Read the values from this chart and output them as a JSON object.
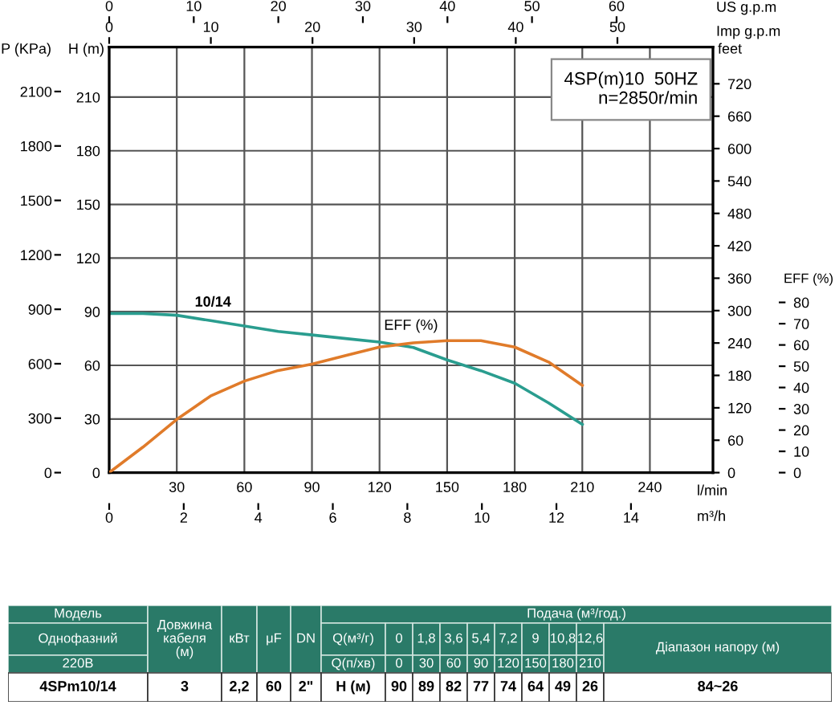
{
  "chart_data": [
    {
      "type": "line",
      "xlabel": "l/min",
      "ylabel": "H (m)",
      "y2label": "EFF (%)",
      "y3label": "feet",
      "x2label": "Imp g.p.m",
      "xlim": [
        0,
        268
      ],
      "xticks": [
        30,
        60,
        90,
        120,
        150,
        180,
        210,
        240
      ],
      "ylim": [
        0,
        238
      ],
      "yticks": [
        0,
        30,
        60,
        90,
        120,
        150,
        180,
        210
      ],
      "y2lim": [
        0,
        80
      ],
      "y2ticks": [
        0,
        10,
        20,
        30,
        40,
        50,
        60,
        70,
        80
      ],
      "y3lim": [
        0,
        788
      ],
      "y3ticks": [
        0,
        60,
        120,
        180,
        240,
        300,
        360,
        420,
        480,
        540,
        600,
        660,
        720
      ],
      "x2lim": [
        0,
        59.4
      ],
      "x2ticks": [
        0,
        10,
        20,
        30,
        40,
        50
      ],
      "grid": true,
      "series": [
        {
          "name": "10/14",
          "color": "#2a9d8f",
          "x": [
            0,
            15,
            30,
            45,
            60,
            75,
            90,
            105,
            120,
            135,
            150,
            165,
            180,
            195,
            210
          ],
          "values": [
            89,
            89,
            88,
            85,
            82,
            79,
            77,
            75,
            73,
            70,
            63,
            57,
            50,
            39,
            27
          ]
        },
        {
          "name": "EFF (%)",
          "color": "#e07b2a",
          "axis": "y2",
          "x": [
            0,
            15,
            30,
            45,
            60,
            75,
            90,
            105,
            120,
            135,
            150,
            165,
            180,
            195,
            210
          ],
          "values": [
            0,
            12,
            25,
            36,
            43,
            48,
            51,
            55,
            59,
            61,
            62,
            62,
            59,
            52,
            41
          ]
        }
      ],
      "annotations": [
        "4SP(m)10  50HZ\nn=2850r/min",
        "Модель",
        "Однофазний",
        "220В",
        "Довжина\nкабеля\n(м)",
        "кВт",
        "μF",
        "DN",
        "Подача (м³/год.)",
        "Q(м³/г)",
        "0",
        "1,8",
        "3,6",
        "5,4",
        "7,2",
        "9",
        "10,8",
        "12,6",
        "Q(п/хв)",
        "0",
        "30",
        "60",
        "90",
        "120",
        "150",
        "180",
        "210",
        "Діапазон напору (м)",
        "4SPm10/14",
        "3",
        "2,2",
        "60",
        "2\"",
        "Н (м)",
        "90",
        "89",
        "82",
        "77",
        "74",
        "64",
        "49",
        "26",
        "84~26"
      ]
    },
    {
      "type": "line",
      "xlabel": "m³/h",
      "ylabel": "P (KPa)",
      "x2label": "US g.p.m",
      "xlim": [
        0,
        16.2
      ],
      "xticks": [
        0,
        2,
        4,
        6,
        8,
        10,
        12,
        14
      ],
      "ylim": [
        0,
        2345
      ],
      "yticks": [
        0,
        300,
        600,
        900,
        1200,
        1500,
        1800,
        2100
      ],
      "x2lim": [
        0,
        71.4
      ],
      "x2ticks": [
        0,
        10,
        20,
        30,
        40,
        50,
        60
      ]
    }
  ]
}
